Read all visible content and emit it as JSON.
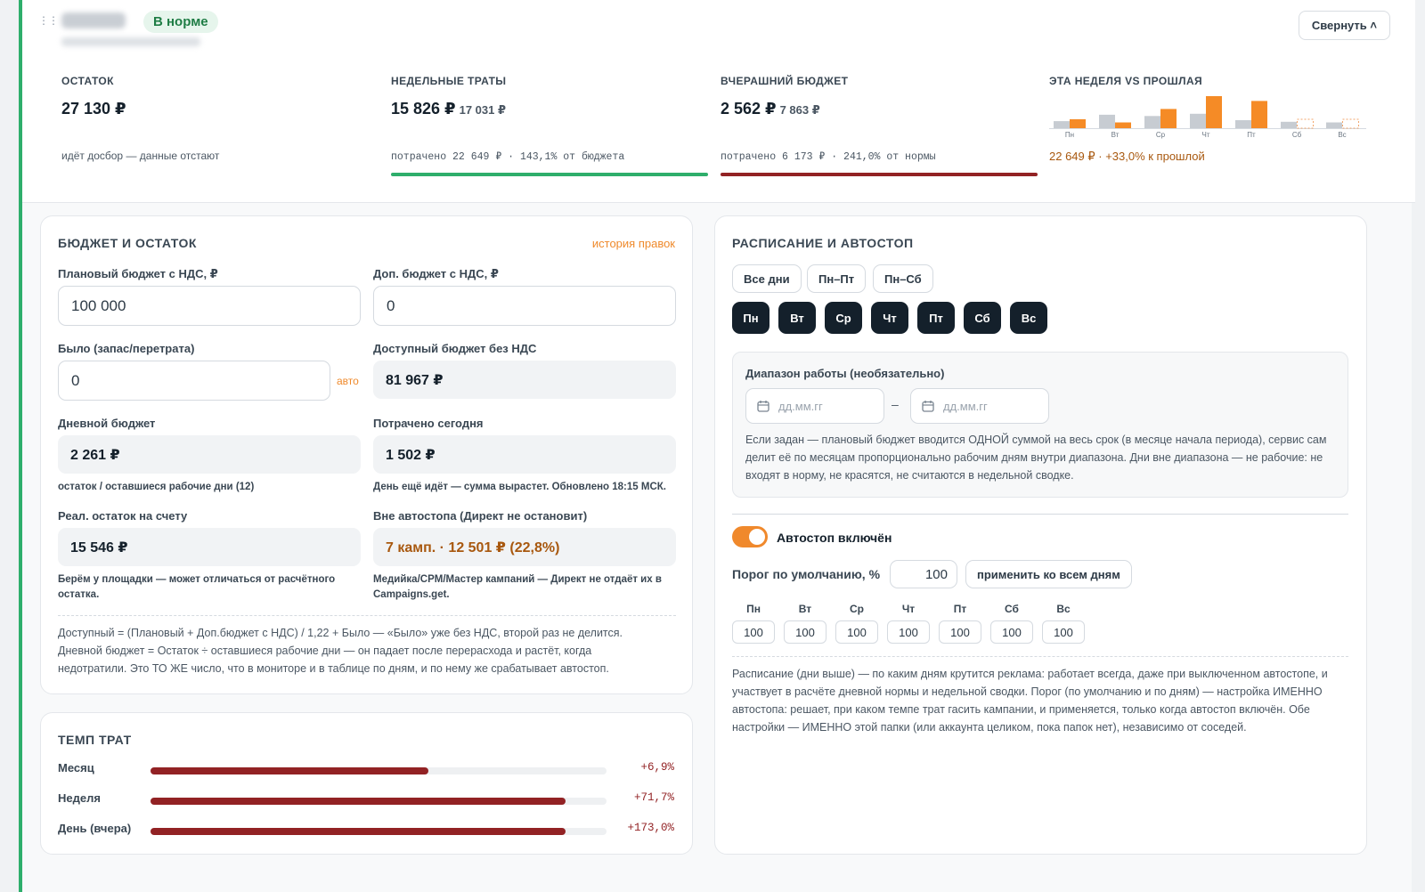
{
  "header": {
    "status": "В норме",
    "collapse_label": "Свернуть ˄",
    "kpis": [
      {
        "label": "ОСТАТОК",
        "value": "27 130 ₽",
        "sub": "",
        "note": "идёт досбор — данные отстают"
      },
      {
        "label": "НЕДЕЛЬНЫЕ ТРАТЫ",
        "value": "15 826 ₽",
        "sub": "17 031 ₽",
        "note": "потрачено 22 649 ₽ · 143,1% от бюджета",
        "bar_color": "#2eae6b"
      },
      {
        "label": "ВЧЕРАШНИЙ БЮДЖЕТ",
        "value": "2 562 ₽",
        "sub": "7 863 ₽",
        "note": "потрачено 6 173 ₽ · 241,0% от нормы",
        "bar_color": "#922224"
      }
    ],
    "week_compare": {
      "label": "ЭТА НЕДЕЛЯ VS ПРОШЛАЯ",
      "note": "22 649 ₽ · +33,0% к прошлой"
    }
  },
  "chart_data": {
    "type": "bar",
    "categories": [
      "Пн",
      "Вт",
      "Ср",
      "Чт",
      "Пт",
      "Сб",
      "Вс"
    ],
    "series": [
      {
        "values": [
          0.22,
          0.42,
          0.38,
          0.45,
          0.25,
          0.2,
          0.18
        ]
      },
      {
        "values": [
          0.28,
          0.18,
          0.6,
          1.0,
          0.85,
          0.0,
          0.0
        ]
      }
    ],
    "colors": {
      "prev": "#c7ccd2",
      "curr": "#f58b26",
      "future": "#f2a56a"
    },
    "future_days": [
      "Сб",
      "Вс"
    ]
  },
  "budget": {
    "title": "БЮДЖЕТ И ОСТАТОК",
    "history_link": "история правок",
    "plan_label": "Плановый бюджет с НДС, ₽",
    "plan_value": "100 000",
    "extra_label": "Доп. бюджет с НДС, ₽",
    "extra_value": "0",
    "was_label": "Было (запас/перетрата)",
    "was_value": "0",
    "was_auto": "авто",
    "avail_label": "Доступный бюджет без НДС",
    "avail_value": "81 967 ₽",
    "daily_label": "Дневной бюджет",
    "daily_value": "2 261 ₽",
    "daily_hint": "остаток / оставшиеся рабочие дни (12)",
    "spent_label": "Потрачено сегодня",
    "spent_value": "1 502 ₽",
    "spent_hint": "День ещё идёт — сумма вырастет. Обновлено 18:15 МСК.",
    "real_label": "Реал. остаток на счету",
    "real_value": "15 546 ₽",
    "real_hint": "Берём у площадки — может отличаться от расчётного остатка.",
    "outside_label": "Вне автостопа (Директ не остановит)",
    "outside_value": "7 камп. · 12 501 ₽ (22,8%)",
    "outside_hint": "Медийка/CPM/Мастер кампаний — Директ не отдаёт их в Campaigns.get.",
    "formula": "Доступный = (Плановый + Доп.бюджет с НДС) / 1,22 + Было — «Было» уже без НДС, второй раз не делится. Дневной бюджет = Остаток ÷ оставшиеся рабочие дни — он падает после перерасхода и растёт, когда недотратили. Это ТО ЖЕ число, что в мониторе и в таблице по дням, и по нему же срабатывает автостоп."
  },
  "tempo": {
    "title": "ТЕМП ТРАТ",
    "rows": [
      {
        "label": "Месяц",
        "value": "+6,9%",
        "fill": 0.61
      },
      {
        "label": "Неделя",
        "value": "+71,7%",
        "fill": 0.91
      },
      {
        "label": "День (вчера)",
        "value": "+173,0%",
        "fill": 0.91
      }
    ]
  },
  "schedule": {
    "title": "РАСПИСАНИЕ И АВТОСТОП",
    "presets": [
      "Все дни",
      "Пн–Пт",
      "Пн–Сб"
    ],
    "days": [
      "Пн",
      "Вт",
      "Ср",
      "Чт",
      "Пт",
      "Сб",
      "Вс"
    ],
    "range_label": "Диапазон работы (необязательно)",
    "date_placeholder": "дд.мм.гг",
    "range_dash": "–",
    "range_note": "Если задан — плановый бюджет вводится ОДНОЙ суммой на весь срок (в месяце начала периода), сервис сам делит её по месяцам пропорционально рабочим дням внутри диапазона. Дни вне диапазона — не рабочие: не входят в норму, не красятся, не считаются в недельной сводке.",
    "autostop_label": "Автостоп включён",
    "threshold_label": "Порог по умолчанию, %",
    "threshold_value": "100",
    "apply_all": "применить ко всем дням",
    "day_thresholds": [
      "100",
      "100",
      "100",
      "100",
      "100",
      "100",
      "100"
    ],
    "footer_note": "Расписание (дни выше) — по каким дням крутится реклама: работает всегда, даже при выключенном автостопе, и участвует в расчёте дневной нормы и недельной сводки. Порог (по умолчанию и по дням) — настройка ИМЕННО автостопа: решает, при каком темпе трат гасить кампании, и применяется, только когда автостоп включён. Обе настройки — ИМЕННО этой папки (или аккаунта целиком, пока папок нет), независимо от соседей."
  }
}
